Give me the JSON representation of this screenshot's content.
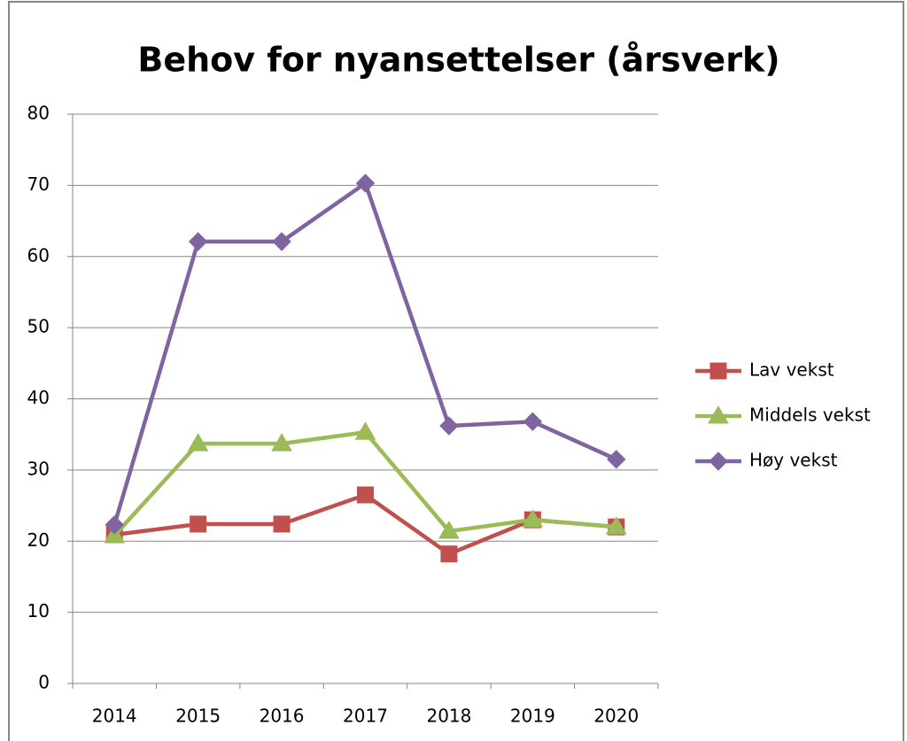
{
  "chart_data": {
    "type": "line",
    "title": "Behov for nyansettelser (årsverk)",
    "categories": [
      "2014",
      "2015",
      "2016",
      "2017",
      "2018",
      "2019",
      "2020"
    ],
    "series": [
      {
        "name": "Lav vekst",
        "color": "#c0504d",
        "marker": "square",
        "values": [
          20.9,
          22.4,
          22.4,
          26.5,
          18.2,
          23,
          22
        ]
      },
      {
        "name": "Middels vekst",
        "color": "#9bbb59",
        "marker": "triangle",
        "values": [
          20.8,
          33.7,
          33.7,
          35.3,
          21.4,
          23,
          22
        ]
      },
      {
        "name": "Høy vekst",
        "color": "#8064a2",
        "marker": "diamond",
        "values": [
          22.3,
          62.1,
          62.1,
          70.3,
          36.2,
          36.8,
          31.5
        ]
      }
    ],
    "ylim": [
      0,
      80
    ],
    "yticks": [
      0,
      10,
      20,
      30,
      40,
      50,
      60,
      70,
      80
    ],
    "grid": true,
    "legend": "right"
  }
}
